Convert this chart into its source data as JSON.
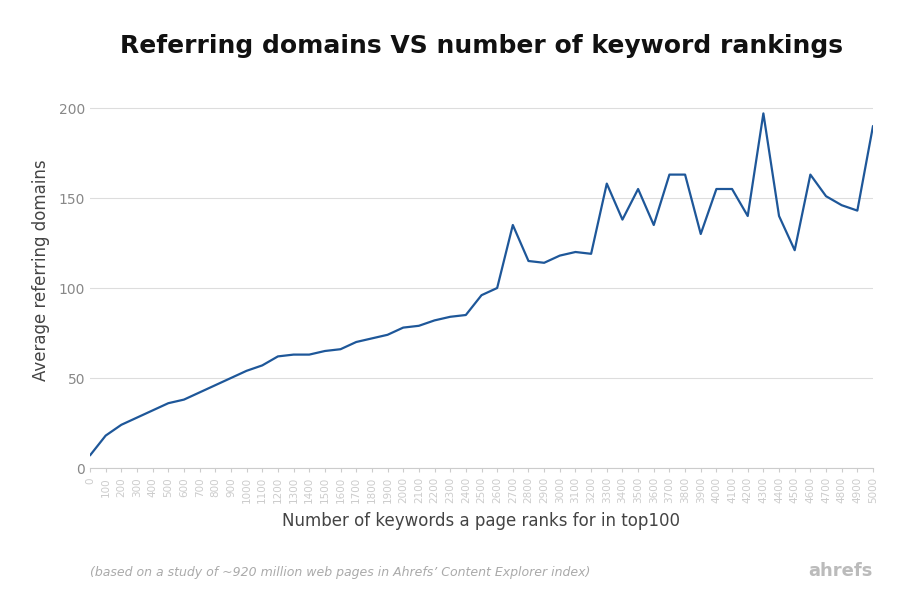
{
  "title": "Referring domains VS number of keyword rankings",
  "xlabel": "Number of keywords a page ranks for in top100",
  "ylabel": "Average referring domains",
  "footnote": "(based on a study of ~920 million web pages in Ahrefs’ Content Explorer index)",
  "ahrefs_text": "ahrefs",
  "line_color": "#1e5799",
  "background_color": "#ffffff",
  "title_fontsize": 18,
  "label_fontsize": 12,
  "footnote_fontsize": 9,
  "ahrefs_fontsize": 13,
  "x_data": [
    0,
    100,
    200,
    300,
    400,
    500,
    600,
    700,
    800,
    900,
    1000,
    1100,
    1200,
    1300,
    1400,
    1500,
    1600,
    1700,
    1800,
    1900,
    2000,
    2100,
    2200,
    2300,
    2400,
    2500,
    2600,
    2700,
    2800,
    2900,
    3000,
    3100,
    3200,
    3300,
    3400,
    3500,
    3600,
    3700,
    3800,
    3900,
    4000,
    4100,
    4200,
    4300,
    4400,
    4500,
    4600,
    4700,
    4800,
    4900,
    5000
  ],
  "y_data": [
    7,
    18,
    24,
    28,
    32,
    36,
    38,
    42,
    46,
    50,
    54,
    57,
    62,
    63,
    63,
    65,
    66,
    70,
    72,
    74,
    78,
    79,
    82,
    84,
    85,
    96,
    100,
    135,
    115,
    114,
    118,
    120,
    119,
    158,
    138,
    155,
    135,
    163,
    163,
    130,
    155,
    155,
    140,
    197,
    140,
    121,
    163,
    151,
    146,
    143,
    190
  ],
  "ylim": [
    0,
    220
  ],
  "xlim": [
    0,
    5000
  ],
  "yticks": [
    0,
    50,
    100,
    150,
    200
  ],
  "grid_color": "#dddddd",
  "tick_color": "#888888",
  "spine_color": "#cccccc",
  "title_color": "#111111",
  "label_color": "#444444",
  "footnote_color": "#aaaaaa",
  "ahrefs_color": "#bbbbbb"
}
